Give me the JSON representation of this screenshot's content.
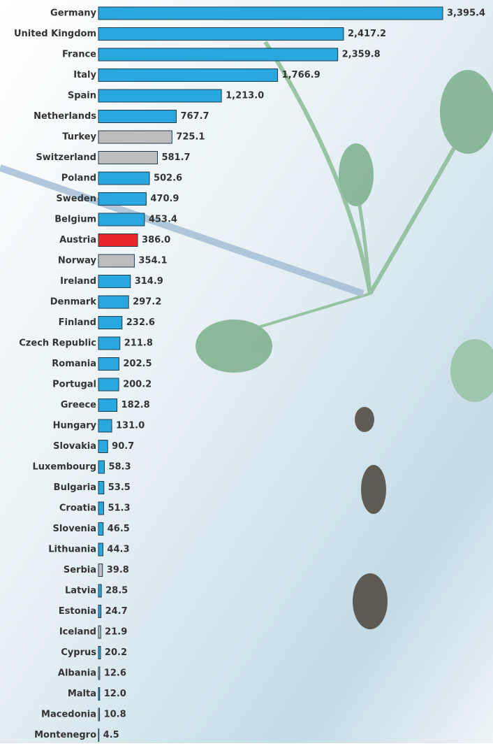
{
  "chart_data": {
    "type": "hbar",
    "categories": [
      "Germany",
      "United Kingdom",
      "France",
      "Italy",
      "Spain",
      "Netherlands",
      "Turkey",
      "Switzerland",
      "Poland",
      "Sweden",
      "Belgium",
      "Austria",
      "Norway",
      "Ireland",
      "Denmark",
      "Finland",
      "Czech Republic",
      "Romania",
      "Portugal",
      "Greece",
      "Hungary",
      "Slovakia",
      "Luxembourg",
      "Bulgaria",
      "Croatia",
      "Slovenia",
      "Lithuania",
      "Serbia",
      "Latvia",
      "Estonia",
      "Iceland",
      "Cyprus",
      "Albania",
      "Malta",
      "Macedonia",
      "Montenegro"
    ],
    "values": [
      3395.4,
      2417.2,
      2359.8,
      1766.9,
      1213.0,
      767.7,
      725.1,
      581.7,
      502.6,
      470.9,
      453.4,
      386.0,
      354.1,
      314.9,
      297.2,
      232.6,
      211.8,
      202.5,
      200.2,
      182.8,
      131.0,
      90.7,
      58.3,
      53.5,
      51.3,
      46.5,
      44.3,
      39.8,
      28.5,
      24.7,
      21.9,
      20.2,
      12.6,
      12.0,
      10.8,
      4.5
    ],
    "value_labels": [
      "3,395.4",
      "2,417.2",
      "2,359.8",
      "1,766.9",
      "1,213.0",
      "767.7",
      "725.1",
      "581.7",
      "502.6",
      "470.9",
      "453.4",
      "386.0",
      "354.1",
      "314.9",
      "297.2",
      "232.6",
      "211.8",
      "202.5",
      "200.2",
      "182.8",
      "131.0",
      "90.7",
      "58.3",
      "53.5",
      "51.3",
      "46.5",
      "44.3",
      "39.8",
      "28.5",
      "24.7",
      "21.9",
      "20.2",
      "12.6",
      "12.0",
      "10.8",
      "4.5"
    ],
    "colors": [
      "#29a8e0",
      "#29a8e0",
      "#29a8e0",
      "#29a8e0",
      "#29a8e0",
      "#29a8e0",
      "#bdbdbf",
      "#bdbdbf",
      "#29a8e0",
      "#29a8e0",
      "#29a8e0",
      "#e8262a",
      "#bdbdbf",
      "#29a8e0",
      "#29a8e0",
      "#29a8e0",
      "#29a8e0",
      "#29a8e0",
      "#29a8e0",
      "#29a8e0",
      "#29a8e0",
      "#29a8e0",
      "#29a8e0",
      "#29a8e0",
      "#29a8e0",
      "#29a8e0",
      "#29a8e0",
      "#bdbdbf",
      "#29a8e0",
      "#29a8e0",
      "#bdbdbf",
      "#29a8e0",
      "#bdbdbf",
      "#29a8e0",
      "#bdbdbf",
      "#bdbdbf"
    ]
  }
}
